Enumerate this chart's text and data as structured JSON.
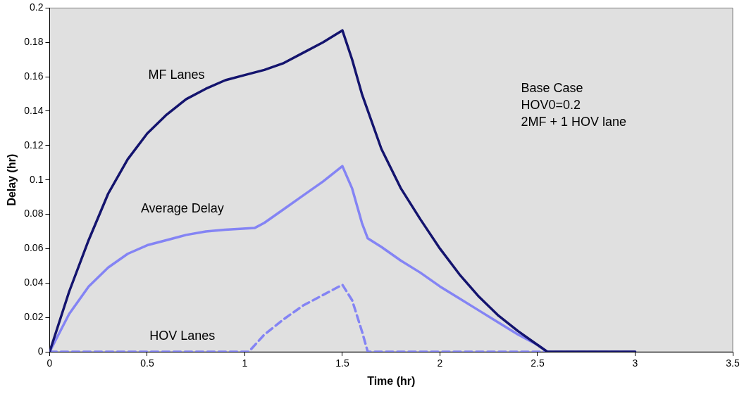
{
  "chart_data": {
    "type": "line",
    "xlabel": "Time (hr)",
    "ylabel": "Delay (hr)",
    "xlim": [
      0,
      3.5
    ],
    "xticks": [
      0,
      0.5,
      1,
      1.5,
      2,
      2.5,
      3,
      3.5
    ],
    "ylim": [
      0,
      0.2
    ],
    "yticks": [
      0,
      0.02,
      0.04,
      0.06,
      0.08,
      0.1,
      0.12,
      0.14,
      0.16,
      0.18,
      0.2
    ],
    "grid": false,
    "legend": false,
    "marker": "none",
    "annotations": [
      "Base Case\nHOV0=0.2\n2MF + 1 HOV lane"
    ],
    "series": [
      {
        "name": "MF Lanes",
        "color": "#14146e",
        "line_style": "solid",
        "x": [
          0,
          0.1,
          0.2,
          0.3,
          0.4,
          0.5,
          0.6,
          0.7,
          0.8,
          0.9,
          1.0,
          1.1,
          1.2,
          1.3,
          1.4,
          1.5,
          1.55,
          1.6,
          1.7,
          1.8,
          1.9,
          2.0,
          2.1,
          2.2,
          2.3,
          2.4,
          2.5,
          2.55,
          3.0
        ],
        "values": [
          0,
          0.035,
          0.065,
          0.092,
          0.112,
          0.127,
          0.138,
          0.147,
          0.153,
          0.158,
          0.161,
          0.164,
          0.168,
          0.174,
          0.18,
          0.187,
          0.17,
          0.15,
          0.118,
          0.095,
          0.077,
          0.06,
          0.045,
          0.032,
          0.021,
          0.012,
          0.004,
          0,
          0
        ]
      },
      {
        "name": "Average Delay",
        "color": "#8484f4",
        "line_style": "solid",
        "x": [
          0,
          0.1,
          0.2,
          0.3,
          0.4,
          0.5,
          0.6,
          0.7,
          0.8,
          0.9,
          1.05,
          1.1,
          1.2,
          1.3,
          1.4,
          1.5,
          1.55,
          1.6,
          1.63,
          1.7,
          1.8,
          1.9,
          2.0,
          2.1,
          2.2,
          2.3,
          2.4,
          2.5,
          2.55,
          3.0
        ],
        "values": [
          0,
          0.022,
          0.038,
          0.049,
          0.057,
          0.062,
          0.065,
          0.068,
          0.07,
          0.071,
          0.072,
          0.075,
          0.083,
          0.091,
          0.099,
          0.108,
          0.095,
          0.075,
          0.066,
          0.061,
          0.053,
          0.046,
          0.038,
          0.031,
          0.024,
          0.017,
          0.01,
          0.004,
          0,
          0
        ]
      },
      {
        "name": "HOV Lanes",
        "color": "#8484f4",
        "line_style": "dashed",
        "x": [
          0,
          1.02,
          1.1,
          1.2,
          1.3,
          1.4,
          1.5,
          1.55,
          1.6,
          1.63,
          3.0
        ],
        "values": [
          0,
          0,
          0.01,
          0.019,
          0.027,
          0.033,
          0.039,
          0.03,
          0.012,
          0,
          0
        ]
      }
    ]
  }
}
